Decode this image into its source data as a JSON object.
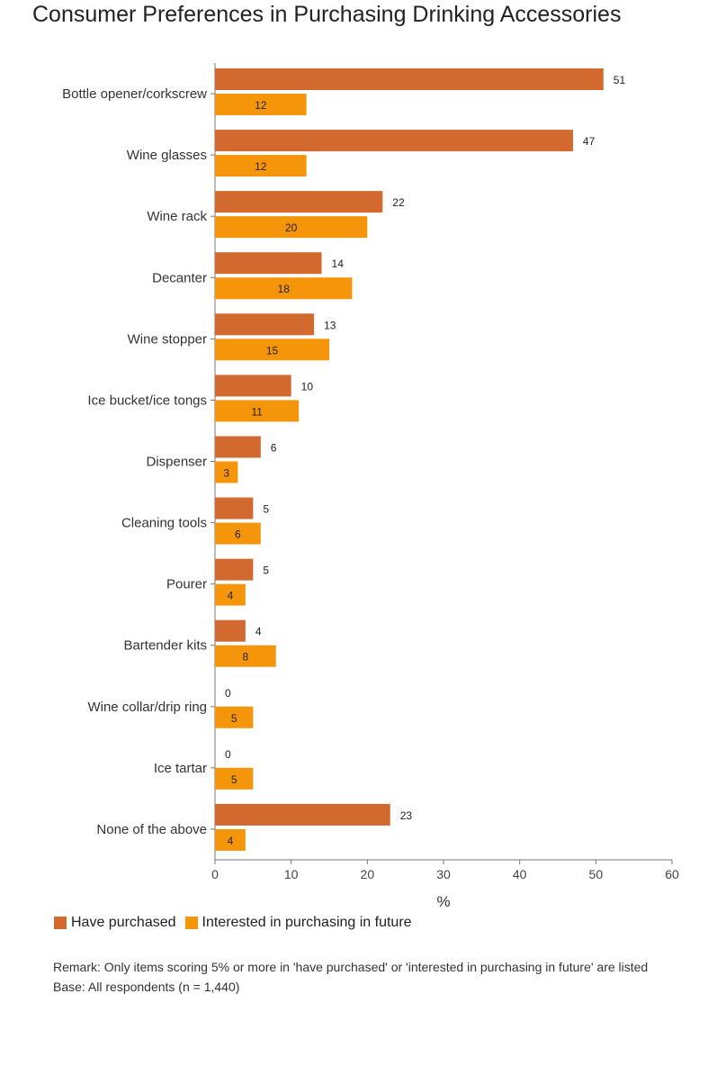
{
  "title": "Consumer Preferences in Purchasing Drinking Accessories",
  "colors": {
    "have_purchased": "#D2692E",
    "interested": "#F5960A"
  },
  "legend": [
    {
      "label": "Have purchased",
      "color": "#D2692E"
    },
    {
      "label": "Interested in purchasing in future",
      "color": "#F5960A"
    }
  ],
  "notes": {
    "remark": "Remark: Only items scoring 5% or more in 'have purchased' or 'interested in purchasing in future' are listed",
    "base": "Base: All respondents (n = 1,440)"
  },
  "chart_data": {
    "type": "bar",
    "orientation": "horizontal",
    "title": "Consumer Preferences in Purchasing Drinking Accessories",
    "xlabel": "%",
    "ylabel": "",
    "xlim": [
      0,
      60
    ],
    "x_ticks": [
      "0",
      "10",
      "20",
      "30",
      "40",
      "50",
      "60"
    ],
    "grid": false,
    "legend_position": "bottom-left",
    "categories": [
      "Bottle opener/corkscrew",
      "Wine glasses",
      "Wine rack",
      "Decanter",
      "Wine stopper",
      "Ice bucket/ice tongs",
      "Dispenser",
      "Cleaning tools",
      "Pourer",
      "Bartender kits",
      "Wine collar/drip ring",
      "Ice tartar",
      "None of the above"
    ],
    "series": [
      {
        "name": "Have purchased",
        "values": [
          51,
          47,
          22,
          14,
          13,
          10,
          6,
          5,
          5,
          4,
          0,
          0,
          23
        ]
      },
      {
        "name": "Interested in purchasing in future",
        "values": [
          12,
          12,
          20,
          18,
          15,
          11,
          3,
          6,
          4,
          8,
          5,
          5,
          4
        ]
      }
    ]
  }
}
